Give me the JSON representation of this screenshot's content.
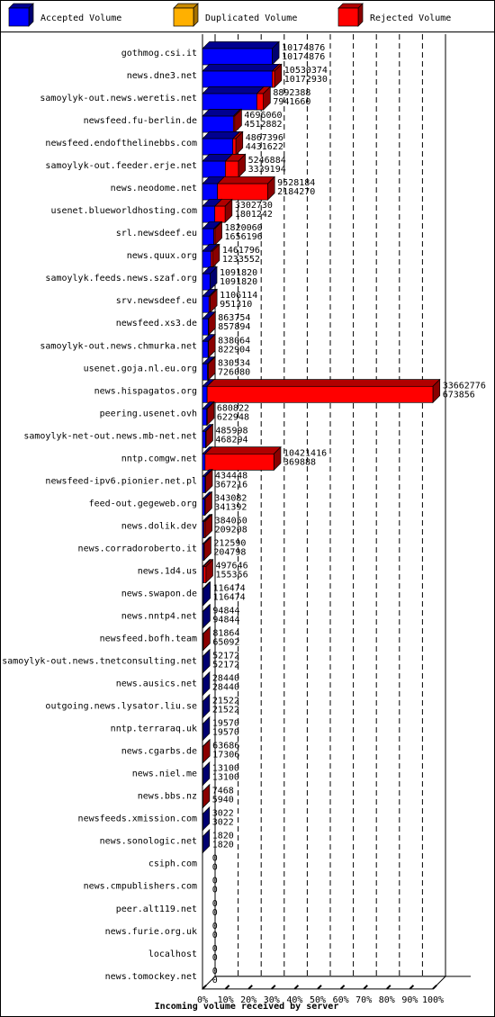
{
  "chart_data": {
    "type": "bar",
    "xlabel": "Incoming volume received by server",
    "legend_position": "top",
    "x_ticks": [
      "0%",
      "10%",
      "20%",
      "30%",
      "40%",
      "50%",
      "60%",
      "70%",
      "80%",
      "90%",
      "100%"
    ],
    "xlim": [
      0,
      33662776
    ],
    "series": [
      {
        "name": "Accepted Volume",
        "color": "#0000ff"
      },
      {
        "name": "Duplicated Volume",
        "color": "#ffb000"
      },
      {
        "name": "Rejected Volume",
        "color": "#ff0000"
      }
    ],
    "rows": [
      {
        "server": "gothmog.csi.it",
        "total": 10174876,
        "accepted": 10174876
      },
      {
        "server": "news.dne3.net",
        "total": 10530374,
        "accepted": 10172930
      },
      {
        "server": "samoylyk-out.news.weretis.net",
        "total": 8892388,
        "accepted": 7941660
      },
      {
        "server": "newsfeed.fu-berlin.de",
        "total": 4696060,
        "accepted": 4512882
      },
      {
        "server": "newsfeed.endofthelinebbs.com",
        "total": 4867396,
        "accepted": 4431622
      },
      {
        "server": "samoylyk-out.feeder.erje.net",
        "total": 5246884,
        "accepted": 3339194
      },
      {
        "server": "news.neodome.net",
        "total": 9528184,
        "accepted": 2184270
      },
      {
        "server": "usenet.blueworldhosting.com",
        "total": 3302730,
        "accepted": 1801242
      },
      {
        "server": "srl.newsdeef.eu",
        "total": 1820060,
        "accepted": 1656196
      },
      {
        "server": "news.quux.org",
        "total": 1461796,
        "accepted": 1233552
      },
      {
        "server": "samoylyk.feeds.news.szaf.org",
        "total": 1091820,
        "accepted": 1091820
      },
      {
        "server": "srv.newsdeef.eu",
        "total": 1106114,
        "accepted": 951310
      },
      {
        "server": "newsfeed.xs3.de",
        "total": 863754,
        "accepted": 857894
      },
      {
        "server": "samoylyk-out.news.chmurka.net",
        "total": 838064,
        "accepted": 822904
      },
      {
        "server": "usenet.goja.nl.eu.org",
        "total": 830534,
        "accepted": 726080
      },
      {
        "server": "news.hispagatos.org",
        "total": 33662776,
        "accepted": 673856
      },
      {
        "server": "peering.usenet.ovh",
        "total": 680822,
        "accepted": 622948
      },
      {
        "server": "samoylyk-net-out.news.mb-net.net",
        "total": 485998,
        "accepted": 468294
      },
      {
        "server": "nntp.comgw.net",
        "total": 10421416,
        "accepted": 369888
      },
      {
        "server": "newsfeed-ipv6.pionier.net.pl",
        "total": 434448,
        "accepted": 367216
      },
      {
        "server": "feed-out.gegeweb.org",
        "total": 343082,
        "accepted": 341392
      },
      {
        "server": "news.dolik.dev",
        "total": 384050,
        "accepted": 209208
      },
      {
        "server": "news.corradoroberto.it",
        "total": 212590,
        "accepted": 204798
      },
      {
        "server": "news.1d4.us",
        "total": 497646,
        "accepted": 155356
      },
      {
        "server": "news.swapon.de",
        "total": 116474,
        "accepted": 116474
      },
      {
        "server": "news.nntp4.net",
        "total": 94844,
        "accepted": 94844
      },
      {
        "server": "newsfeed.bofh.team",
        "total": 81864,
        "accepted": 65092
      },
      {
        "server": "samoylyk-out.news.tnetconsulting.net",
        "total": 52172,
        "accepted": 52172
      },
      {
        "server": "news.ausics.net",
        "total": 28440,
        "accepted": 28440
      },
      {
        "server": "outgoing.news.lysator.liu.se",
        "total": 21522,
        "accepted": 21522
      },
      {
        "server": "nntp.terraraq.uk",
        "total": 19570,
        "accepted": 19570
      },
      {
        "server": "news.cgarbs.de",
        "total": 63686,
        "accepted": 17306
      },
      {
        "server": "news.niel.me",
        "total": 13100,
        "accepted": 13100
      },
      {
        "server": "news.bbs.nz",
        "total": 7468,
        "accepted": 5940
      },
      {
        "server": "newsfeeds.xmission.com",
        "total": 3022,
        "accepted": 3022
      },
      {
        "server": "news.sonologic.net",
        "total": 1820,
        "accepted": 1820
      },
      {
        "server": "csiph.com",
        "total": 0,
        "accepted": 0
      },
      {
        "server": "news.cmpublishers.com",
        "total": 0,
        "accepted": 0
      },
      {
        "server": "peer.alt119.net",
        "total": 0,
        "accepted": 0
      },
      {
        "server": "news.furie.org.uk",
        "total": 0,
        "accepted": 0
      },
      {
        "server": "localhost",
        "total": 0,
        "accepted": 0
      },
      {
        "server": "news.tomockey.net",
        "total": 0,
        "accepted": 0
      }
    ]
  }
}
